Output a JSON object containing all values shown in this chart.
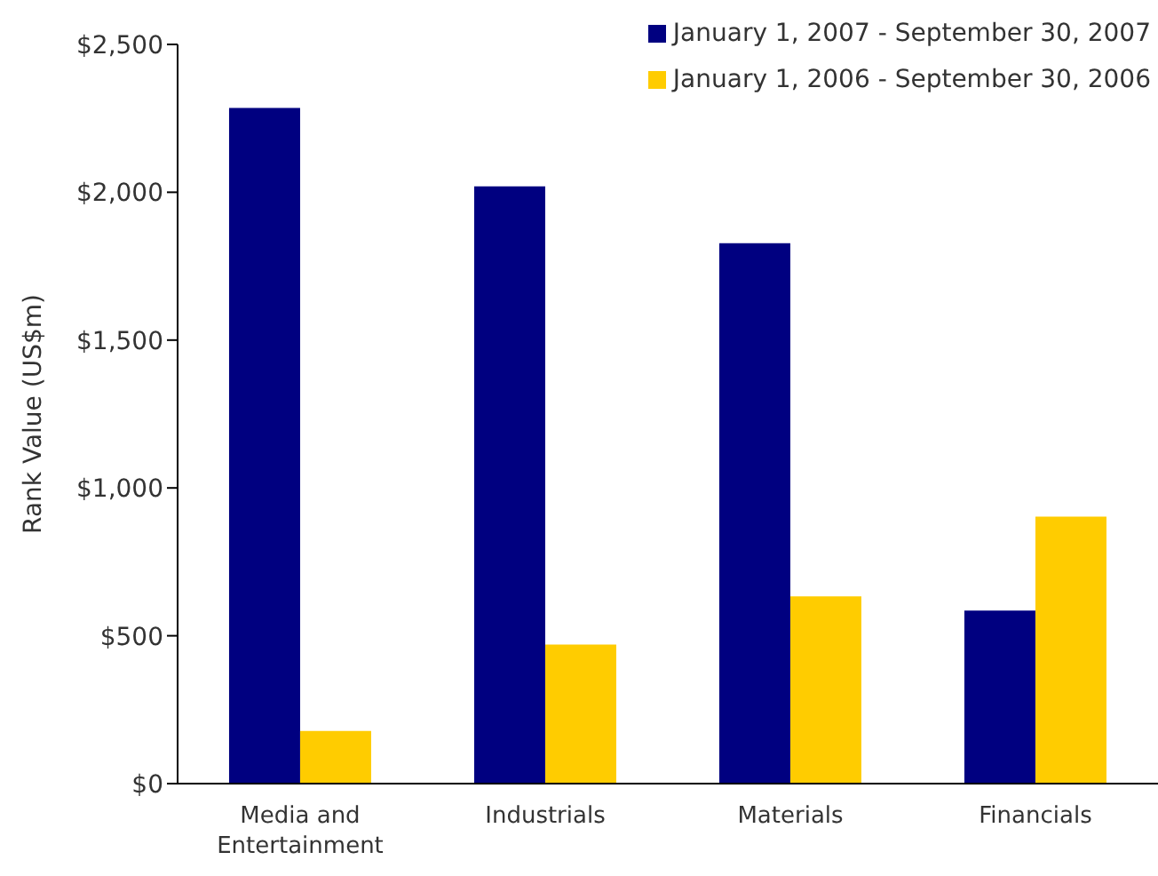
{
  "chart_data": {
    "type": "bar",
    "ylabel": "Rank Value (US$m)",
    "categories": [
      "Media and Entertainment",
      "Industrials",
      "Materials",
      "Financials"
    ],
    "series": [
      {
        "name": "January 1, 2007 - September 30, 2007",
        "color": "#000080",
        "values": [
          2285,
          2020,
          1828,
          585
        ]
      },
      {
        "name": "January 1, 2006 - September 30, 2006",
        "color": "#ffcc00",
        "values": [
          178,
          470,
          633,
          903
        ]
      }
    ],
    "ylim": [
      0,
      2500
    ],
    "yticks": [
      {
        "value": 0,
        "label": "$0"
      },
      {
        "value": 500,
        "label": "$500"
      },
      {
        "value": 1000,
        "label": "$1,000"
      },
      {
        "value": 1500,
        "label": "$1,500"
      },
      {
        "value": 2000,
        "label": "$2,000"
      },
      {
        "value": 2500,
        "label": "$2,500"
      }
    ],
    "grid": false,
    "legend": "top right"
  }
}
